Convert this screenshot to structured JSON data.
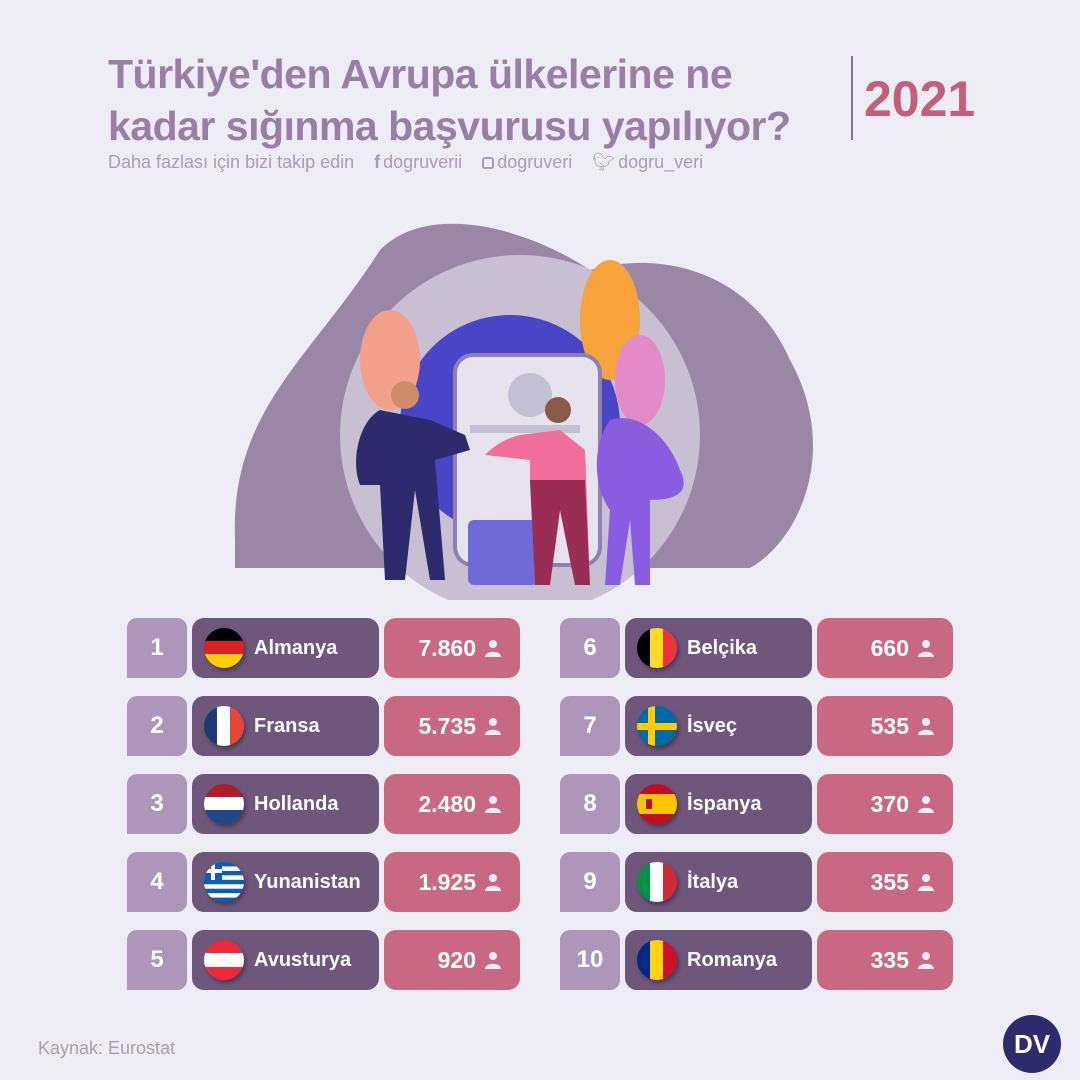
{
  "header": {
    "title": "Türkiye'den Avrupa ülkelerine ne kadar sığınma başvurusu yapılıyor?",
    "year": "2021"
  },
  "social": {
    "follow_text": "Daha fazlası için bizi takip edin",
    "facebook": "dogruverii",
    "instagram": "dogruveri",
    "twitter": "dogru_veri"
  },
  "rows": [
    {
      "rank": "1",
      "country": "Almanya",
      "value": "7.860",
      "flag": "de"
    },
    {
      "rank": "2",
      "country": "Fransa",
      "value": "5.735",
      "flag": "fr"
    },
    {
      "rank": "3",
      "country": "Hollanda",
      "value": "2.480",
      "flag": "nl"
    },
    {
      "rank": "4",
      "country": "Yunanistan",
      "value": "1.925",
      "flag": "gr"
    },
    {
      "rank": "5",
      "country": "Avusturya",
      "value": "920",
      "flag": "at"
    },
    {
      "rank": "6",
      "country": "Belçika",
      "value": "660",
      "flag": "be"
    },
    {
      "rank": "7",
      "country": "İsveç",
      "value": "535",
      "flag": "se"
    },
    {
      "rank": "8",
      "country": "İspanya",
      "value": "370",
      "flag": "es"
    },
    {
      "rank": "9",
      "country": "İtalya",
      "value": "355",
      "flag": "it"
    },
    {
      "rank": "10",
      "country": "Romanya",
      "value": "335",
      "flag": "ro"
    }
  ],
  "footer": {
    "source": "Kaynak: Eurostat",
    "logo": "DV"
  },
  "colors": {
    "rank": "#ae95ba",
    "name": "#6f577c",
    "value": "#c86882",
    "title": "#9a7ea6",
    "year": "#c55e7c"
  }
}
